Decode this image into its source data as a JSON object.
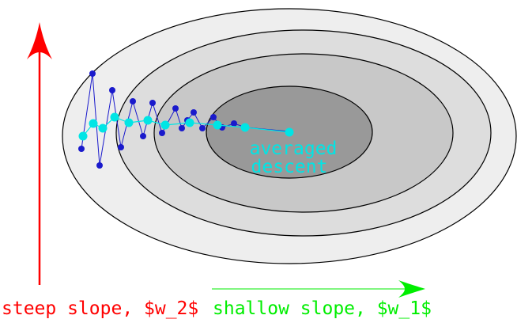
{
  "labels": {
    "averaged_line1": "averaged",
    "averaged_line2": "descent",
    "steep": "steep slope, $w_2$",
    "shallow": "shallow slope, $w_1$"
  },
  "colors": {
    "contour_1": "#eeeeee",
    "contour_2": "#dddddd",
    "contour_3": "#c8c8c8",
    "contour_4": "#999999",
    "contour_stroke": "#000000",
    "sgd_path": "#1a1acc",
    "averaged_path": "#00e5e5",
    "steep": "#ff0000",
    "shallow": "#00ee00"
  }
}
